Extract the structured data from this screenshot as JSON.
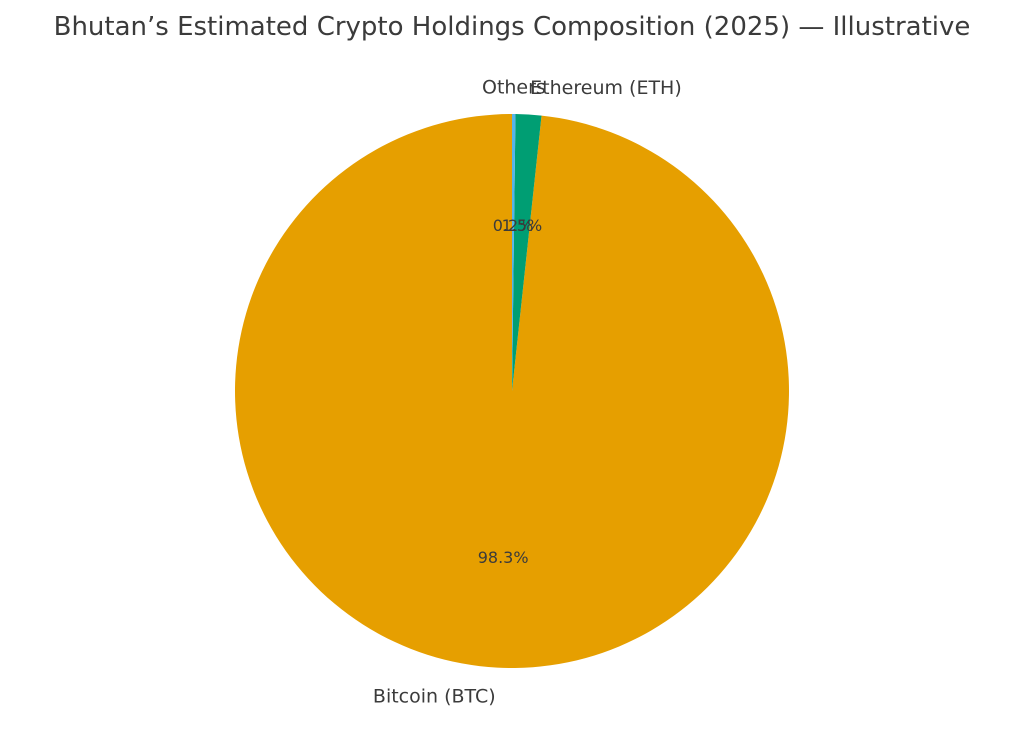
{
  "chart_data": {
    "type": "pie",
    "title": "Bhutan’s Estimated Crypto Holdings Composition (2025) — Illustrative",
    "slices": [
      {
        "label": "Bitcoin (BTC)",
        "value": 98.3,
        "pct_label": "98.3%",
        "color": "#E69F00"
      },
      {
        "label": "Ethereum (ETH)",
        "value": 1.5,
        "pct_label": "1.5%",
        "color": "#009E73"
      },
      {
        "label": "Others",
        "value": 0.2,
        "pct_label": "0.2%",
        "color": "#56B4E9"
      }
    ],
    "start_angle_deg": 90,
    "direction": "counterclockwise",
    "legend": "none"
  }
}
